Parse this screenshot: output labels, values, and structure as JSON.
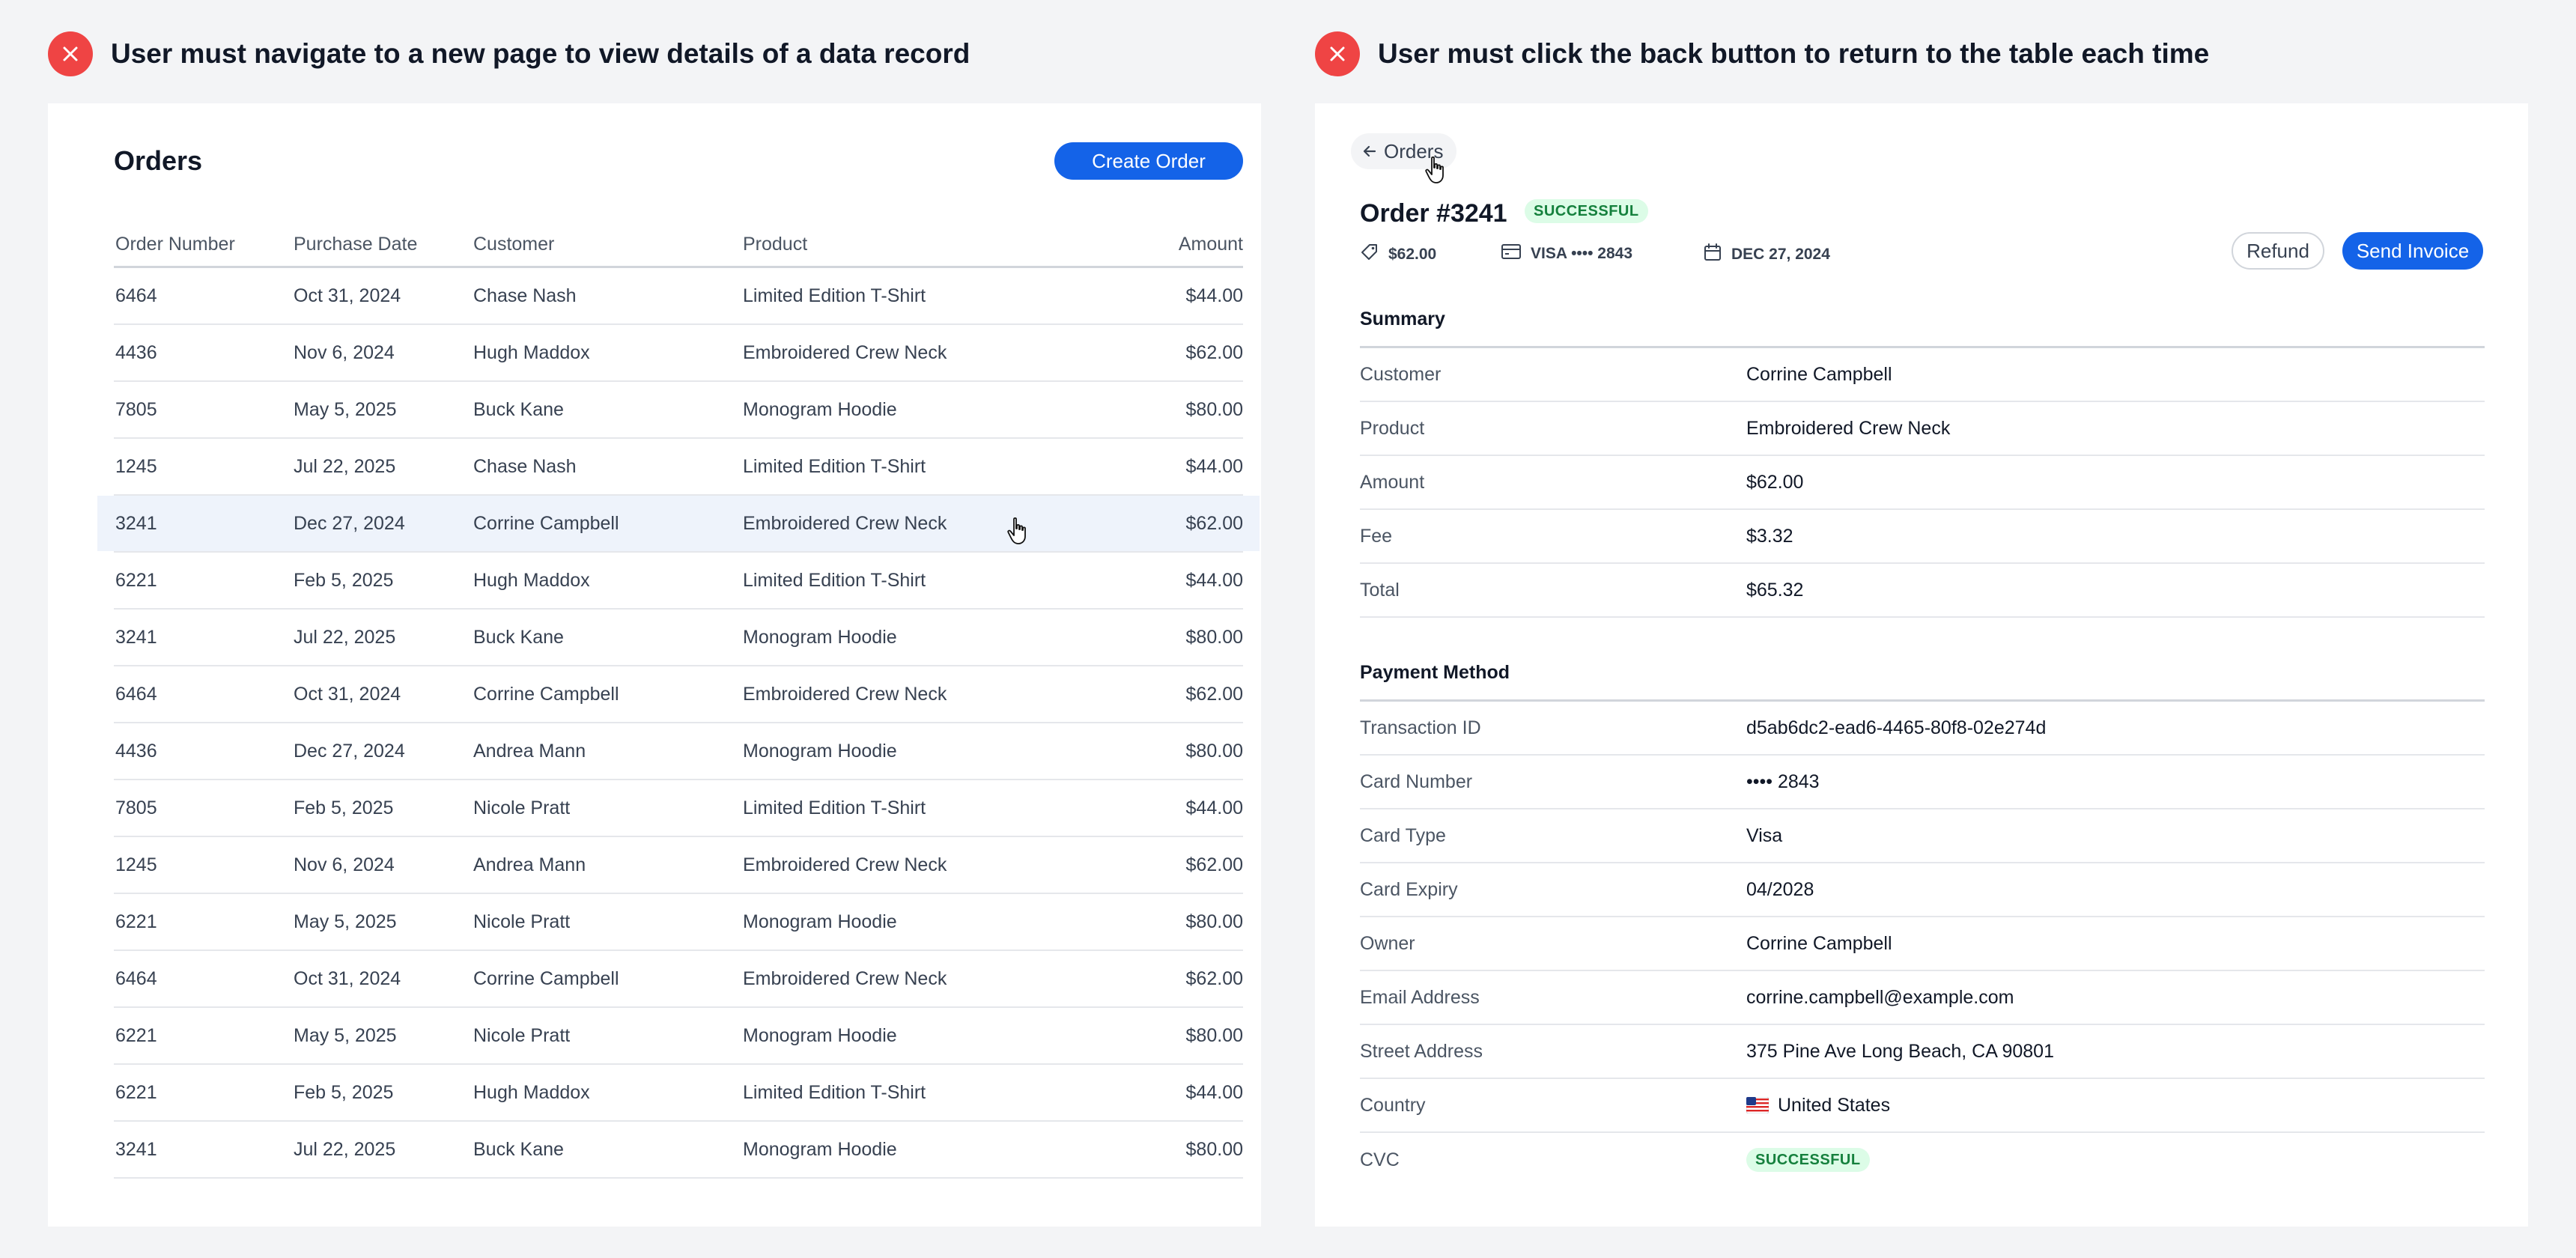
{
  "captions": {
    "left": "User must navigate to a new page to view details of a data record",
    "right": "User must click the back button to return to the table each time"
  },
  "colors": {
    "accent": "#1463e8",
    "error": "#ef4444",
    "success_bg": "#dcfce7",
    "success_text": "#15803d"
  },
  "orders_table": {
    "title": "Orders",
    "create_label": "Create Order",
    "columns": [
      "Order Number",
      "Purchase Date",
      "Customer",
      "Product",
      "Amount"
    ],
    "rows": [
      [
        "6464",
        "Oct 31, 2024",
        "Chase Nash",
        "Limited Edition T-Shirt",
        "$44.00"
      ],
      [
        "4436",
        "Nov 6, 2024",
        "Hugh Maddox",
        "Embroidered Crew Neck",
        "$62.00"
      ],
      [
        "7805",
        "May 5, 2025",
        "Buck Kane",
        "Monogram Hoodie",
        "$80.00"
      ],
      [
        "1245",
        "Jul 22, 2025",
        "Chase Nash",
        "Limited Edition T-Shirt",
        "$44.00"
      ],
      [
        "3241",
        "Dec 27, 2024",
        "Corrine Campbell",
        "Embroidered Crew Neck",
        "$62.00"
      ],
      [
        "6221",
        "Feb 5, 2025",
        "Hugh Maddox",
        "Limited Edition T-Shirt",
        "$44.00"
      ],
      [
        "3241",
        "Jul 22, 2025",
        "Buck Kane",
        "Monogram Hoodie",
        "$80.00"
      ],
      [
        "6464",
        "Oct 31, 2024",
        "Corrine Campbell",
        "Embroidered Crew Neck",
        "$62.00"
      ],
      [
        "4436",
        "Dec 27, 2024",
        "Andrea Mann",
        "Monogram Hoodie",
        "$80.00"
      ],
      [
        "7805",
        "Feb 5, 2025",
        "Nicole Pratt",
        "Limited Edition T-Shirt",
        "$44.00"
      ],
      [
        "1245",
        "Nov 6, 2024",
        "Andrea Mann",
        "Embroidered Crew Neck",
        "$62.00"
      ],
      [
        "6221",
        "May 5, 2025",
        "Nicole Pratt",
        "Monogram Hoodie",
        "$80.00"
      ],
      [
        "6464",
        "Oct 31, 2024",
        "Corrine Campbell",
        "Embroidered Crew Neck",
        "$62.00"
      ],
      [
        "6221",
        "May 5, 2025",
        "Nicole Pratt",
        "Monogram Hoodie",
        "$80.00"
      ],
      [
        "6221",
        "Feb 5, 2025",
        "Hugh Maddox",
        "Limited Edition T-Shirt",
        "$44.00"
      ],
      [
        "3241",
        "Jul 22, 2025",
        "Buck Kane",
        "Monogram Hoodie",
        "$80.00"
      ]
    ],
    "highlighted_row_index": 4
  },
  "order_detail": {
    "back_label": "Orders",
    "title": "Order #3241",
    "status": "SUCCESSFUL",
    "meta": {
      "amount": "$62.00",
      "card": "VISA  •••• 2843",
      "date": "DEC 27, 2024"
    },
    "refund_label": "Refund",
    "send_invoice_label": "Send Invoice",
    "summary": {
      "title": "Summary",
      "rows": [
        {
          "label": "Customer",
          "value": "Corrine Campbell"
        },
        {
          "label": "Product",
          "value": "Embroidered Crew Neck"
        },
        {
          "label": "Amount",
          "value": "$62.00"
        },
        {
          "label": "Fee",
          "value": "$3.32"
        },
        {
          "label": "Total",
          "value": "$65.32"
        }
      ]
    },
    "payment": {
      "title": "Payment Method",
      "rows": [
        {
          "label": "Transaction ID",
          "value": "d5ab6dc2-ead6-4465-80f8-02e274d"
        },
        {
          "label": "Card Number",
          "value": "•••• 2843"
        },
        {
          "label": "Card Type",
          "value": "Visa"
        },
        {
          "label": "Card Expiry",
          "value": "04/2028"
        },
        {
          "label": "Owner",
          "value": "Corrine Campbell"
        },
        {
          "label": "Email Address",
          "value": "corrine.campbell@example.com"
        },
        {
          "label": "Street Address",
          "value": "375 Pine Ave Long Beach, CA 90801"
        },
        {
          "label": "Country",
          "value": "United States",
          "icon": "us-flag-icon"
        }
      ],
      "cvc_label": "CVC",
      "cvc_status": "SUCCESSFUL"
    }
  }
}
